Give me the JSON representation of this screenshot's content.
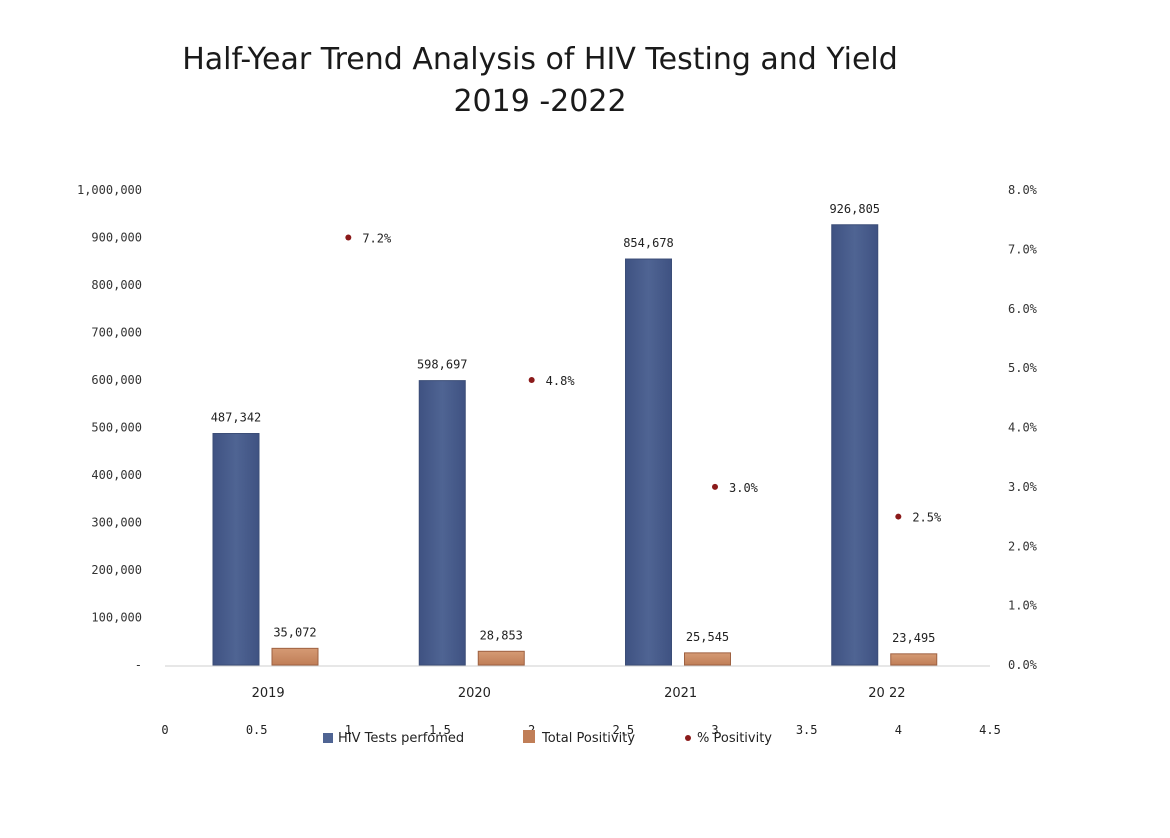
{
  "title_line1": "Half-Year Trend Analysis of HIV Testing and Yield",
  "title_line2": "2019 -2022",
  "colors": {
    "tests": "#4f6493",
    "tests_edge": "#3b4d77",
    "positivity": "#c07e57",
    "positivity_edge": "#9e6141",
    "pct_point": "#8b1a1a",
    "baseline": "#cfcfcf"
  },
  "chart_data": {
    "type": "bar",
    "categories": [
      "2019",
      "2020",
      "2021",
      "20 22"
    ],
    "series": [
      {
        "name": "HIV  Tests perfomed",
        "axis": "left",
        "values": [
          487342,
          598697,
          854678,
          926805
        ],
        "labels": [
          "487,342",
          "598,697",
          "854,678",
          "926,805"
        ]
      },
      {
        "name": "Total Positivity",
        "axis": "left",
        "values": [
          35072,
          28853,
          25545,
          23495
        ],
        "labels": [
          "35,072",
          "28,853",
          "25,545",
          "23,495"
        ]
      },
      {
        "name": "% Positivity",
        "axis": "right",
        "type": "scatter",
        "x": [
          1,
          2,
          3,
          4
        ],
        "values": [
          7.2,
          4.8,
          3.0,
          2.5
        ],
        "labels": [
          "7.2%",
          "4.8%",
          "3.0%",
          "2.5%"
        ]
      }
    ],
    "y_left": {
      "lim": [
        0,
        1000000
      ],
      "ticks": [
        "-",
        "100,000",
        "200,000",
        "300,000",
        "400,000",
        "500,000",
        "600,000",
        "700,000",
        "800,000",
        "900,000",
        "1,000,000"
      ]
    },
    "y_right": {
      "lim": [
        0,
        8
      ],
      "ticks": [
        "0.0%",
        "1.0%",
        "2.0%",
        "3.0%",
        "4.0%",
        "5.0%",
        "6.0%",
        "7.0%",
        "8.0%"
      ]
    },
    "x_secondary": {
      "lim": [
        0,
        4.5
      ],
      "ticks": [
        "0",
        "0.5",
        "1",
        "1.5",
        "2",
        "2.5",
        "3",
        "3.5",
        "4",
        "4.5"
      ]
    },
    "legend_position": "bottom",
    "grid": false
  }
}
